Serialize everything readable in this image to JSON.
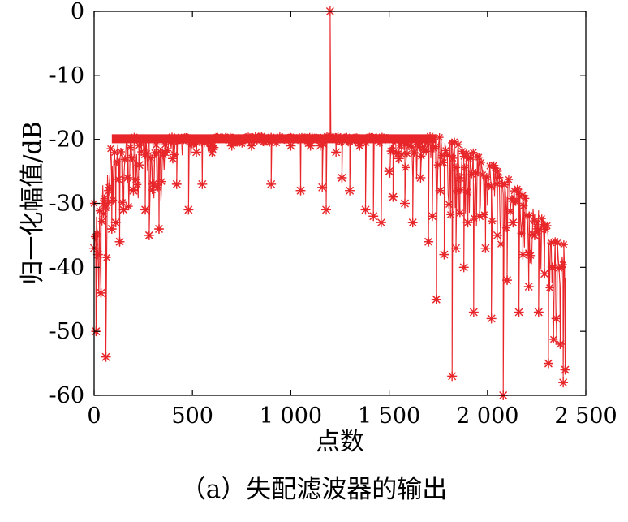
{
  "chart_data": {
    "type": "line",
    "caption": "（a）失配滤波器的输出",
    "xlabel": "点数",
    "ylabel": "归一化幅值/dB",
    "xlim": [
      0,
      2500
    ],
    "ylim": [
      -60,
      0
    ],
    "xticks": [
      0,
      500,
      1000,
      1500,
      2000,
      2500
    ],
    "xtick_labels": [
      "0",
      "500",
      "1 000",
      "1 500",
      "2 000",
      "2 500"
    ],
    "yticks": [
      0,
      -10,
      -20,
      -30,
      -40,
      -50,
      -60
    ],
    "ytick_labels": [
      "0",
      "-10",
      "-20",
      "-30",
      "-40",
      "-50",
      "-60"
    ],
    "grid": false,
    "color": "#e8262a",
    "marker": "*",
    "series": [
      {
        "description_points": [
          [
            0,
            -37
          ],
          [
            10,
            -50
          ],
          [
            20,
            -38
          ],
          [
            35,
            -44
          ],
          [
            50,
            -30
          ],
          [
            60,
            -54
          ],
          [
            75,
            -28
          ],
          [
            90,
            -34
          ],
          [
            110,
            -33
          ],
          [
            130,
            -36
          ],
          [
            150,
            -31
          ],
          [
            170,
            -26
          ],
          [
            200,
            -28
          ],
          [
            230,
            -24
          ],
          [
            260,
            -31
          ],
          [
            280,
            -35
          ],
          [
            300,
            -27
          ],
          [
            330,
            -34
          ],
          [
            360,
            -22
          ],
          [
            400,
            -23
          ],
          [
            420,
            -27
          ],
          [
            480,
            -31
          ],
          [
            520,
            -22
          ],
          [
            550,
            -27
          ],
          [
            600,
            -21
          ],
          [
            700,
            -21
          ],
          [
            800,
            -21
          ],
          [
            900,
            -27
          ],
          [
            1000,
            -21
          ],
          [
            1050,
            -28
          ],
          [
            1100,
            -21
          ],
          [
            1150,
            -21
          ],
          [
            1160,
            -27.5
          ],
          [
            1180,
            -31
          ],
          [
            1200,
            0
          ],
          [
            1230,
            -22
          ],
          [
            1260,
            -26
          ],
          [
            1300,
            -28
          ],
          [
            1350,
            -21
          ],
          [
            1380,
            -31
          ],
          [
            1420,
            -32
          ],
          [
            1460,
            -33
          ],
          [
            1500,
            -25
          ],
          [
            1520,
            -29
          ],
          [
            1550,
            -23
          ],
          [
            1580,
            -30
          ],
          [
            1620,
            -33
          ],
          [
            1660,
            -26
          ],
          [
            1700,
            -36
          ],
          [
            1720,
            -32
          ],
          [
            1740,
            -45
          ],
          [
            1760,
            -28
          ],
          [
            1780,
            -38
          ],
          [
            1820,
            -57
          ],
          [
            1840,
            -37
          ],
          [
            1860,
            -26
          ],
          [
            1880,
            -40
          ],
          [
            1900,
            -33
          ],
          [
            1930,
            -47
          ],
          [
            1960,
            -32
          ],
          [
            1990,
            -37
          ],
          [
            2020,
            -48
          ],
          [
            2050,
            -35
          ],
          [
            2080,
            -60
          ],
          [
            2100,
            -42
          ],
          [
            2130,
            -33
          ],
          [
            2160,
            -47
          ],
          [
            2180,
            -38
          ],
          [
            2210,
            -43
          ],
          [
            2240,
            -35
          ],
          [
            2260,
            -47
          ],
          [
            2290,
            -41
          ],
          [
            2310,
            -55
          ],
          [
            2330,
            -40
          ],
          [
            2350,
            -48
          ],
          [
            2370,
            -52
          ],
          [
            2385,
            -58
          ],
          [
            2395,
            -56
          ]
        ]
      }
    ]
  }
}
